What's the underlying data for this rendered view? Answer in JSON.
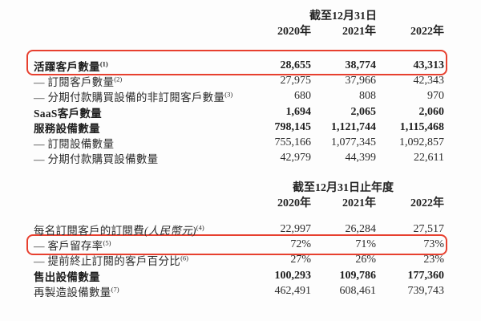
{
  "page": {
    "background": "#fdfdfd",
    "text_color": "#2b2b2b",
    "highlight_box_color": "#e7402f"
  },
  "tables": [
    {
      "period_header": "截至12月31日",
      "years": [
        "2020年",
        "2021年",
        "2022年"
      ],
      "rows": [
        {
          "label": "活躍客戶數量",
          "sup": "(1)",
          "values": [
            "28,655",
            "38,774",
            "43,313"
          ],
          "bold": true,
          "boxed": true,
          "box_style": "tall"
        },
        {
          "label": "— 訂閱客戶數量",
          "sup": "(2)",
          "values": [
            "27,975",
            "37,966",
            "42,343"
          ],
          "bold": false,
          "boxed": false
        },
        {
          "label": "— 分期付款購買設備的非訂閱客戶數量",
          "sup": "(3)",
          "values": [
            "680",
            "808",
            "970"
          ],
          "bold": false,
          "boxed": false
        },
        {
          "label": "SaaS客戶數量",
          "sup": "",
          "values": [
            "1,694",
            "2,065",
            "2,060"
          ],
          "bold": true,
          "boxed": false
        },
        {
          "label": "服務設備數量",
          "sup": "",
          "values": [
            "798,145",
            "1,121,744",
            "1,115,468"
          ],
          "bold": true,
          "boxed": false
        },
        {
          "label": "— 訂閱設備數量",
          "sup": "",
          "values": [
            "755,166",
            "1,077,345",
            "1,092,857"
          ],
          "bold": false,
          "boxed": false
        },
        {
          "label": "— 分期付款購買設備數量",
          "sup": "",
          "values": [
            "42,979",
            "44,399",
            "22,611"
          ],
          "bold": false,
          "boxed": false
        }
      ]
    },
    {
      "period_header": "截至12月31日止年度",
      "years": [
        "2020年",
        "2021年",
        "2022年"
      ],
      "rows": [
        {
          "label": "每名訂閱客戶的訂閱費",
          "label_italic": "(人民幣元)",
          "sup": "(4)",
          "values": [
            "22,997",
            "26,284",
            "27,517"
          ],
          "bold": false,
          "boxed": false
        },
        {
          "label": "— 客戶留存率",
          "sup": "(5)",
          "values": [
            "72%",
            "71%",
            "73%"
          ],
          "bold": false,
          "boxed": true
        },
        {
          "label": "— 提前終止訂閱的客戶百分比",
          "sup": "(6)",
          "values": [
            "27%",
            "26%",
            "23%"
          ],
          "bold": false,
          "boxed": false
        },
        {
          "label": "售出設備數量",
          "sup": "",
          "values": [
            "100,293",
            "109,786",
            "177,360"
          ],
          "bold": true,
          "boxed": false
        },
        {
          "label": "再製造設備數量",
          "sup": "(7)",
          "values": [
            "462,491",
            "608,461",
            "739,743"
          ],
          "bold": false,
          "boxed": false
        }
      ]
    }
  ]
}
